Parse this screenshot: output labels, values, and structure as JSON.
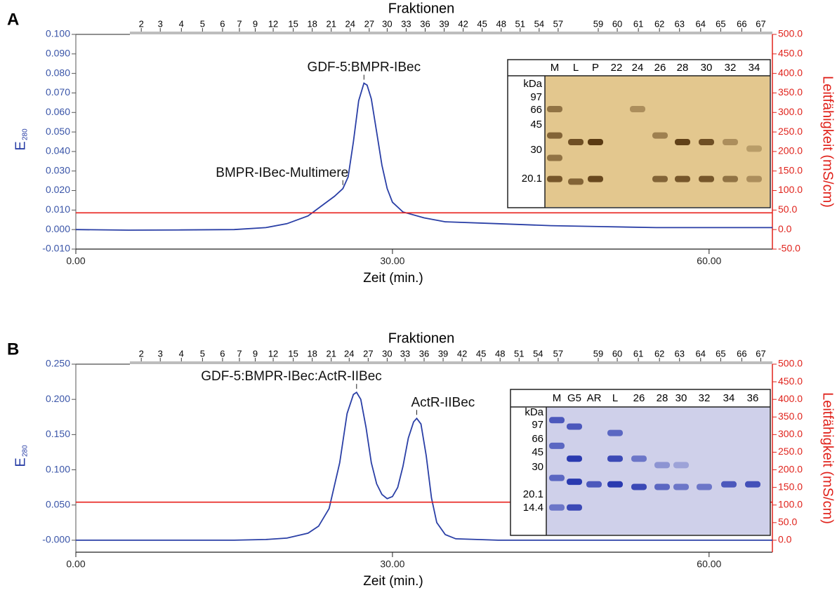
{
  "chart_data": [
    {
      "type": "line",
      "panel": "A",
      "top_label": "Fraktionen",
      "fractions": [
        2,
        3,
        4,
        5,
        6,
        7,
        9,
        12,
        15,
        18,
        21,
        24,
        27,
        30,
        33,
        36,
        39,
        42,
        45,
        48,
        51,
        54,
        57,
        59,
        60,
        61,
        62,
        63,
        64,
        65,
        66,
        67
      ],
      "fraction_x": [
        6.2,
        8.0,
        10.0,
        12.0,
        13.9,
        15.5,
        17.0,
        18.7,
        20.6,
        22.4,
        24.2,
        26.0,
        27.8,
        29.5,
        31.3,
        33.1,
        34.9,
        36.7,
        38.5,
        40.3,
        42.1,
        43.9,
        45.7,
        49.5,
        51.3,
        53.3,
        55.3,
        57.2,
        59.2,
        61.1,
        63.1,
        64.9
      ],
      "xlabel": "Zeit (min.)",
      "ylabel": "E",
      "ylabel_sub": "280",
      "y2label": "Leitfähigkeit (mS/cm)",
      "xlim": [
        0,
        66
      ],
      "xticks": [
        {
          "value": 0,
          "label": "0.00"
        },
        {
          "value": 30,
          "label": "30.00"
        },
        {
          "value": 60,
          "label": "60.00"
        }
      ],
      "ylim": [
        -0.01,
        0.1
      ],
      "yticks": [
        {
          "value": 0.1,
          "label": "0.100"
        },
        {
          "value": 0.09,
          "label": "0.090"
        },
        {
          "value": 0.08,
          "label": "0.080"
        },
        {
          "value": 0.07,
          "label": "0.070"
        },
        {
          "value": 0.06,
          "label": "0.060"
        },
        {
          "value": 0.05,
          "label": "0.050"
        },
        {
          "value": 0.04,
          "label": "0.040"
        },
        {
          "value": 0.03,
          "label": "0.030"
        },
        {
          "value": 0.02,
          "label": "0.020"
        },
        {
          "value": 0.01,
          "label": "0.010"
        },
        {
          "value": 0,
          "label": "0.000"
        },
        {
          "value": -0.01,
          "label": "-0.010"
        }
      ],
      "y2lim": [
        -50,
        500
      ],
      "y2ticks": [
        {
          "value": 500,
          "label": "500.0"
        },
        {
          "value": 450,
          "label": "450.0"
        },
        {
          "value": 400,
          "label": "400.0"
        },
        {
          "value": 350,
          "label": "350.0"
        },
        {
          "value": 300,
          "label": "300.0"
        },
        {
          "value": 250,
          "label": "250.0"
        },
        {
          "value": 200,
          "label": "200.0"
        },
        {
          "value": 150,
          "label": "150.0"
        },
        {
          "value": 100,
          "label": "100.0"
        },
        {
          "value": 50,
          "label": "50.0"
        },
        {
          "value": 0,
          "label": "0.0"
        },
        {
          "value": -50,
          "label": "-50.0"
        }
      ],
      "series": [
        {
          "color": "#2a3fa6",
          "x": [
            0,
            5,
            10,
            15,
            18,
            20,
            22,
            23.5,
            24.5,
            25.3,
            25.8,
            26.3,
            26.8,
            27.3,
            27.6,
            28.0,
            28.5,
            29.0,
            29.5,
            30,
            31,
            33,
            35,
            40,
            45,
            50,
            55,
            60,
            66
          ],
          "values": [
            0,
            -0.0003,
            -0.0002,
            0,
            0.001,
            0.003,
            0.007,
            0.013,
            0.017,
            0.021,
            0.027,
            0.045,
            0.066,
            0.075,
            0.074,
            0.067,
            0.05,
            0.033,
            0.021,
            0.014,
            0.009,
            0.006,
            0.004,
            0.003,
            0.002,
            0.0015,
            0.001,
            0.001,
            0.001
          ]
        },
        {
          "color": "#e8201c",
          "axis": "y2",
          "x": [
            0,
            66
          ],
          "values": [
            43,
            43
          ]
        }
      ],
      "annotations": [
        {
          "text": "GDF-5:BMPR-IBec",
          "x": 27.3,
          "y": 0.075
        },
        {
          "text": "BMPR-IBec-Multimere",
          "x": 25.3,
          "y": 0.021
        }
      ],
      "inset": {
        "lanes": [
          "M",
          "L",
          "P",
          "22",
          "24",
          "26",
          "28",
          "30",
          "32",
          "34"
        ],
        "markers": [
          "kDa",
          "97",
          "66",
          "45",
          "30",
          "20.1"
        ]
      }
    },
    {
      "type": "line",
      "panel": "B",
      "top_label": "Fraktionen",
      "fractions": [
        2,
        3,
        4,
        5,
        6,
        7,
        9,
        12,
        15,
        18,
        21,
        24,
        27,
        30,
        33,
        36,
        39,
        42,
        45,
        48,
        51,
        54,
        57,
        59,
        60,
        61,
        62,
        63,
        64,
        65,
        66,
        67
      ],
      "fraction_x": [
        6.2,
        8.0,
        10.0,
        12.0,
        13.9,
        15.5,
        17.0,
        18.7,
        20.6,
        22.4,
        24.2,
        25.9,
        27.7,
        29.5,
        31.2,
        33.0,
        34.8,
        36.6,
        38.4,
        40.2,
        42.0,
        43.8,
        45.7,
        49.5,
        51.3,
        53.3,
        55.3,
        57.2,
        59.2,
        61.1,
        63.1,
        64.9
      ],
      "xlabel": "Zeit (min.)",
      "ylabel": "E",
      "ylabel_sub": "280",
      "y2label": "Leitfähigkeit (mS/cm)",
      "xlim": [
        0,
        66
      ],
      "xticks": [
        {
          "value": 0,
          "label": "0.00"
        },
        {
          "value": 30,
          "label": "30.00"
        },
        {
          "value": 60,
          "label": "60.00"
        }
      ],
      "ylim": [
        -0.017,
        0.25
      ],
      "yticks": [
        {
          "value": 0.25,
          "label": "0.250"
        },
        {
          "value": 0.2,
          "label": "0.200"
        },
        {
          "value": 0.15,
          "label": "0.150"
        },
        {
          "value": 0.1,
          "label": "0.100"
        },
        {
          "value": 0.05,
          "label": "0.050"
        },
        {
          "value": 0,
          "label": "-0.000"
        }
      ],
      "y2lim": [
        -34,
        500
      ],
      "y2ticks": [
        {
          "value": 500,
          "label": "500.0"
        },
        {
          "value": 450,
          "label": "450.0"
        },
        {
          "value": 400,
          "label": "400.0"
        },
        {
          "value": 350,
          "label": "350.0"
        },
        {
          "value": 300,
          "label": "300.0"
        },
        {
          "value": 250,
          "label": "250.0"
        },
        {
          "value": 200,
          "label": "200.0"
        },
        {
          "value": 150,
          "label": "150.0"
        },
        {
          "value": 100,
          "label": "100.0"
        },
        {
          "value": 50,
          "label": "50.0"
        },
        {
          "value": 0,
          "label": "0.0"
        }
      ],
      "series": [
        {
          "color": "#2a3fa6",
          "x": [
            0,
            10,
            15,
            18,
            20,
            22,
            23,
            24,
            25,
            25.7,
            26.3,
            26.6,
            27,
            27.5,
            28,
            28.5,
            29,
            29.5,
            30,
            30.5,
            31,
            31.5,
            32,
            32.3,
            32.7,
            33.2,
            33.7,
            34.2,
            35,
            36,
            40,
            66
          ],
          "values": [
            0,
            0,
            0,
            0.001,
            0.003,
            0.01,
            0.02,
            0.045,
            0.11,
            0.18,
            0.207,
            0.21,
            0.2,
            0.16,
            0.11,
            0.08,
            0.065,
            0.059,
            0.062,
            0.075,
            0.105,
            0.145,
            0.168,
            0.173,
            0.165,
            0.12,
            0.06,
            0.025,
            0.008,
            0.002,
            0,
            0
          ]
        },
        {
          "color": "#e8201c",
          "axis": "y2",
          "x": [
            0,
            66
          ],
          "values": [
            108,
            108
          ]
        }
      ],
      "annotations": [
        {
          "text": "GDF-5:BMPR-IBec:ActR-IIBec",
          "x": 26.6,
          "y": 0.21
        },
        {
          "text": "ActR-IIBec",
          "x": 32.3,
          "y": 0.173
        }
      ],
      "inset": {
        "lanes": [
          "M",
          "G5",
          "AR",
          "L",
          "26",
          "28",
          "30",
          "32",
          "34",
          "36"
        ],
        "markers": [
          "kDa",
          "97",
          "66",
          "45",
          "30",
          "20.1",
          "14.4"
        ]
      }
    }
  ]
}
